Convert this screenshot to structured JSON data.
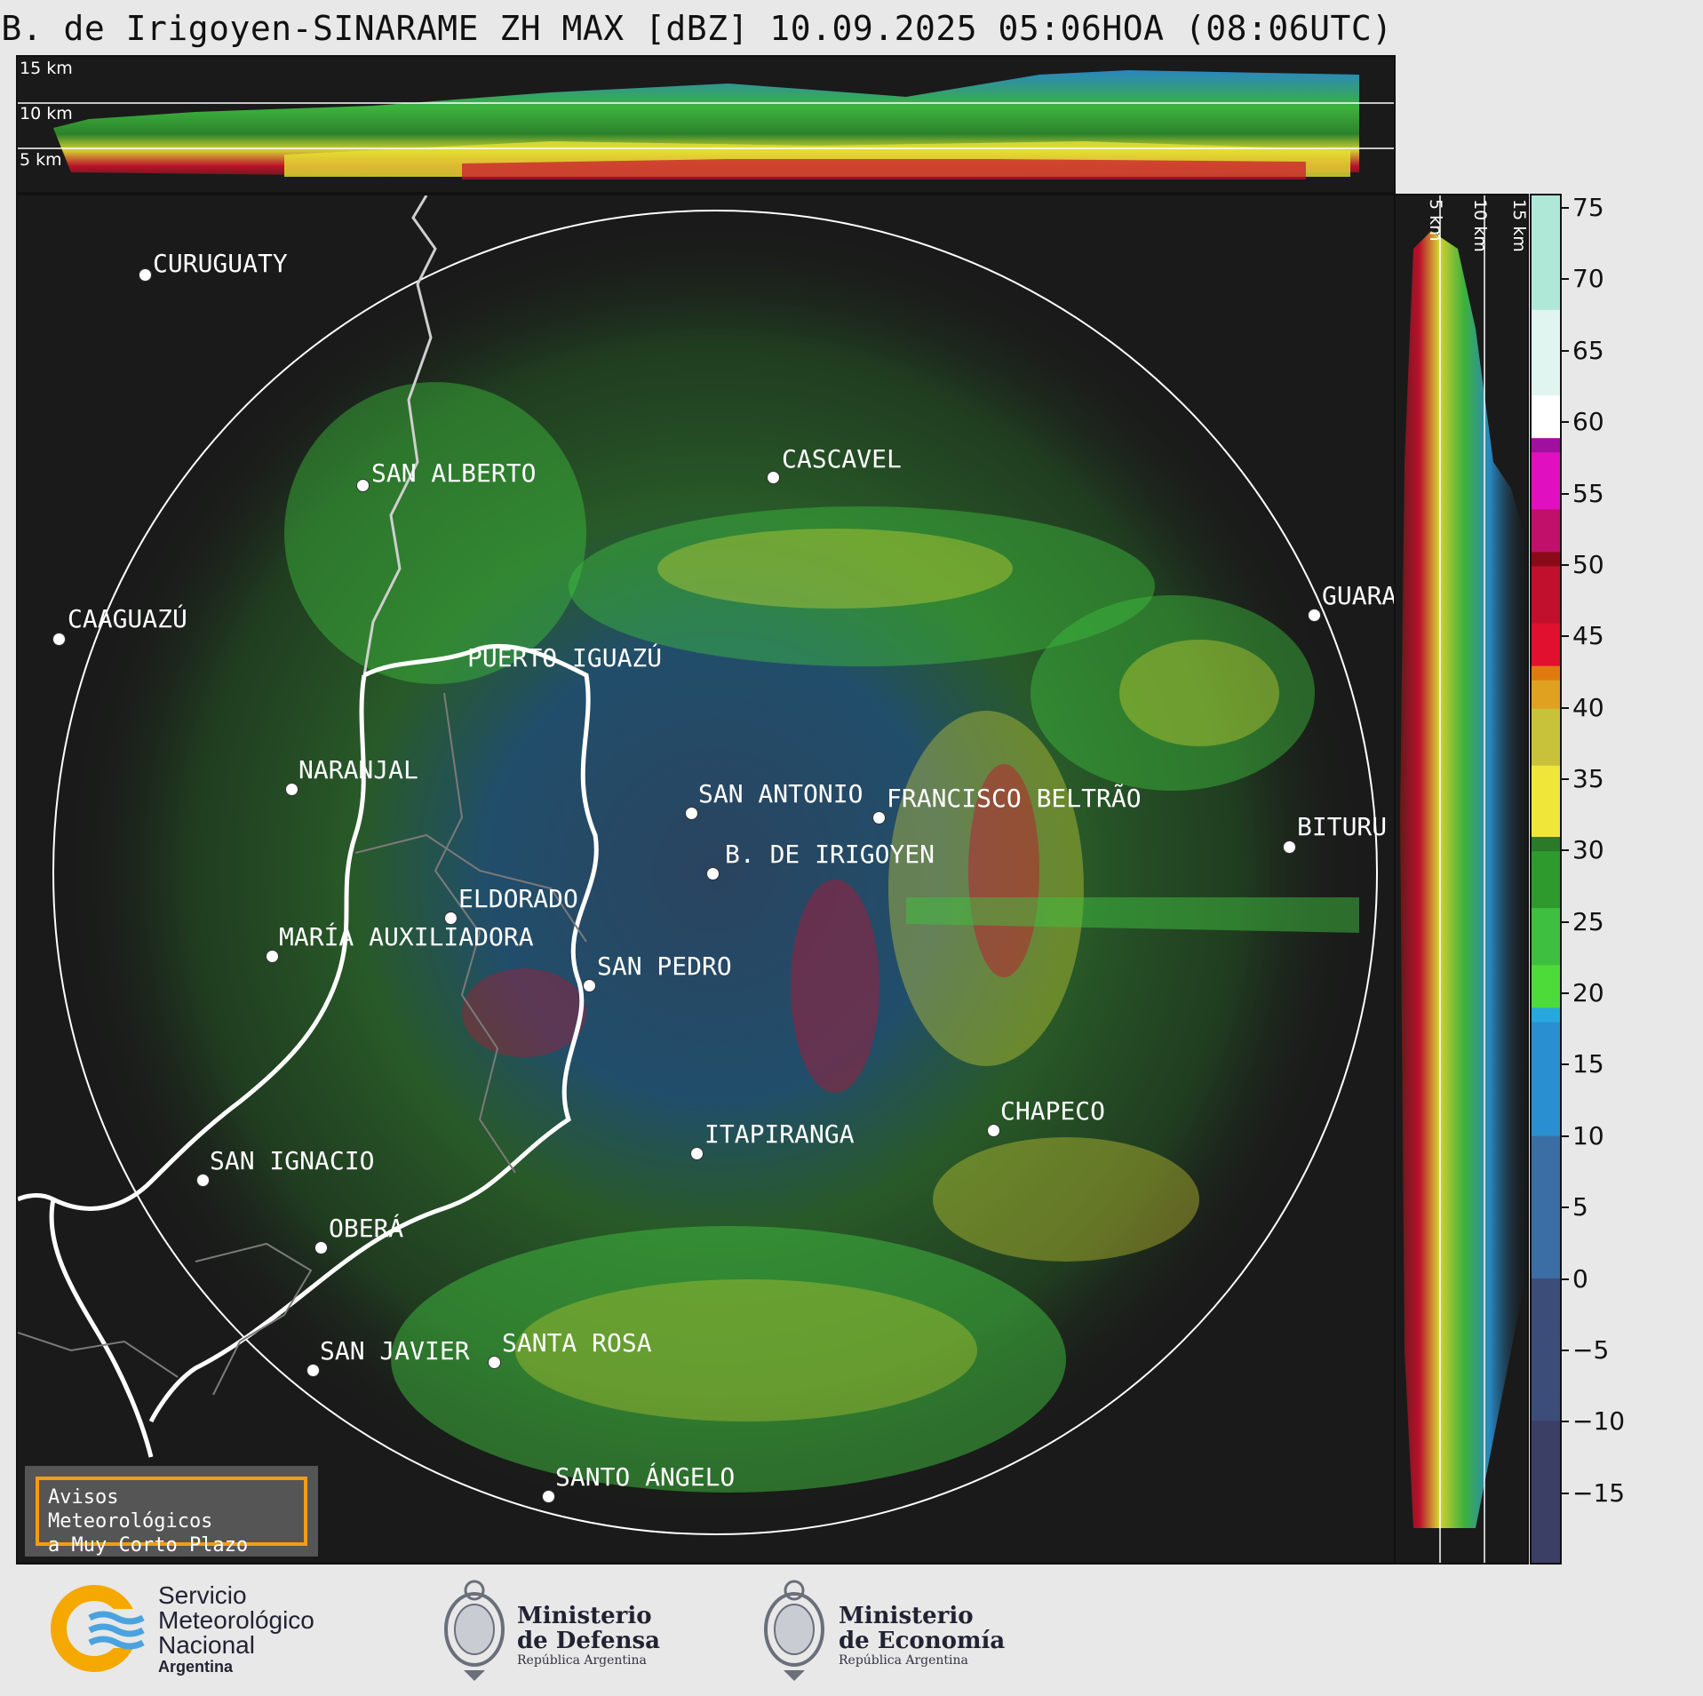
{
  "title": "B. de Irigoyen-SINARAME ZH MAX [dBZ] 10.09.2025 05:06HOA (08:06UTC)",
  "top_profile": {
    "altitude_labels": [
      "15 km",
      "10 km",
      "5 km"
    ]
  },
  "side_profile": {
    "altitude_labels": [
      "5 km",
      "10 km",
      "15 km"
    ]
  },
  "cities": [
    {
      "name": "CURUGUATY"
    },
    {
      "name": "SAN ALBERTO"
    },
    {
      "name": "CASCAVEL"
    },
    {
      "name": "CAAGUAZÚ"
    },
    {
      "name": "GUARA"
    },
    {
      "name": "PUERTO IGUAZÚ"
    },
    {
      "name": "NARANJAL"
    },
    {
      "name": "SAN ANTONIO"
    },
    {
      "name": "FRANCISCO BELTRÃO"
    },
    {
      "name": "BITURU"
    },
    {
      "name": "B. DE IRIGOYEN"
    },
    {
      "name": "ELDORADO"
    },
    {
      "name": "MARÍA AUXILIADORA"
    },
    {
      "name": "SAN PEDRO"
    },
    {
      "name": "CHAPECO"
    },
    {
      "name": "ITAPIRANGA"
    },
    {
      "name": "SAN IGNACIO"
    },
    {
      "name": "OBERÁ"
    },
    {
      "name": "SAN JAVIER"
    },
    {
      "name": "SANTA ROSA"
    },
    {
      "name": "SANTO ÁNGELO"
    }
  ],
  "notice": {
    "line1": "Avisos Meteorológicos",
    "line2": "a Muy Corto Plazo"
  },
  "colorbar": {
    "unit": "dBZ",
    "range": [
      -20,
      76
    ],
    "ticks": [
      "75",
      "70",
      "65",
      "60",
      "55",
      "50",
      "45",
      "40",
      "35",
      "30",
      "25",
      "20",
      "15",
      "10",
      "5",
      "0",
      "−5",
      "−10",
      "−15"
    ],
    "tick_values": [
      75,
      70,
      65,
      60,
      55,
      50,
      45,
      40,
      35,
      30,
      25,
      20,
      15,
      10,
      5,
      0,
      -5,
      -10,
      -15
    ]
  },
  "logos": {
    "smn_line1": "Servicio",
    "smn_line2": "Meteorológico",
    "smn_line3": "Nacional",
    "smn_line4": "Argentina",
    "defensa_line1": "Ministerio",
    "defensa_line2": "de Defensa",
    "defensa_sub": "República Argentina",
    "economia_line1": "Ministerio",
    "economia_line2": "de Economía",
    "economia_sub": "República Argentina"
  },
  "colors": {
    "background": "#1a1a1a",
    "accent_notice": "#f39c12"
  }
}
